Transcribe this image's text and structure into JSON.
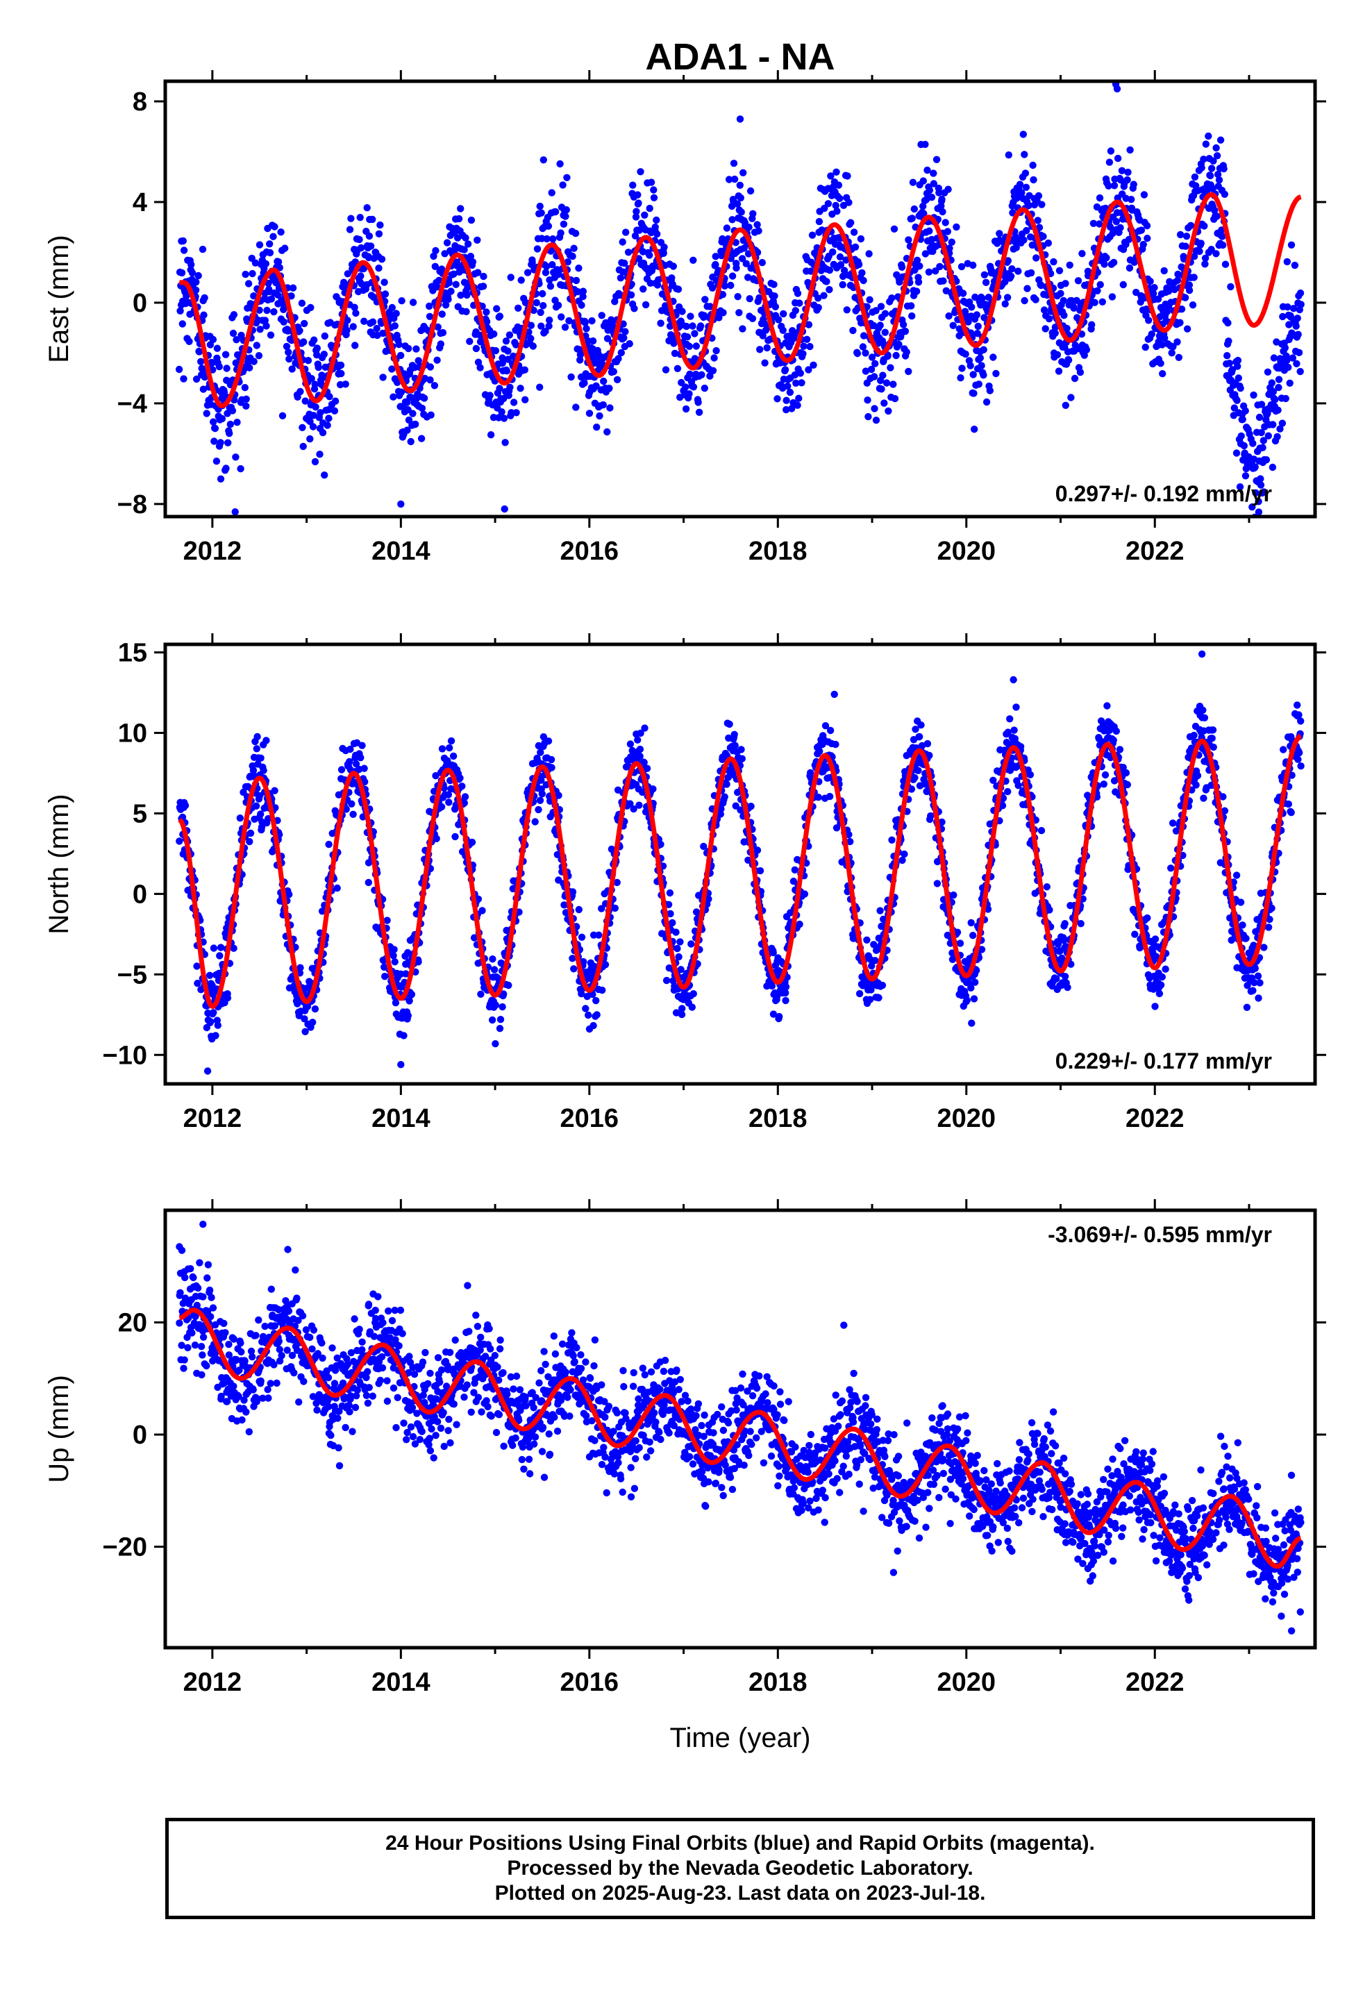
{
  "figure": {
    "title": "ADA1 - NA",
    "xlabel": "Time (year)",
    "footer_lines": [
      "24 Hour Positions Using Final Orbits (blue) and Rapid Orbits (magenta).",
      "Processed by the Nevada Geodetic Laboratory.",
      "Plotted on 2025-Aug-23. Last data on 2023-Jul-18."
    ]
  },
  "chart_data": [
    {
      "type": "scatter",
      "component": "east",
      "ylabel": "East (mm)",
      "xlim": [
        2011.5,
        2023.7
      ],
      "ylim": [
        -8.5,
        8.8
      ],
      "xticks": [
        2012,
        2014,
        2016,
        2018,
        2020,
        2022
      ],
      "yticks": [
        -8,
        -4,
        0,
        4,
        8
      ],
      "ytick_labels": [
        "−8",
        "−4",
        "0",
        "4",
        "8"
      ],
      "rate_text": "0.297+/- 0.192 mm/yr",
      "rate_position": "bottom-right",
      "colors": {
        "points": "#0000ff",
        "fit": "#ff0000"
      },
      "data_range": [
        2011.65,
        2023.55
      ],
      "fit": {
        "x_start": 2011.65,
        "x_end": 2023.55,
        "offset_at_start": 0.5,
        "rate": 0.297,
        "amplitude": 2.6,
        "peak_phase": 0.6
      },
      "fit_anchors": [
        {
          "x": 2011.7,
          "y": 0.8
        },
        {
          "x": 2012.1,
          "y": -4.1
        },
        {
          "x": 2012.65,
          "y": 1.3
        },
        {
          "x": 2013.1,
          "y": -3.9
        },
        {
          "x": 2013.6,
          "y": 1.6
        },
        {
          "x": 2014.1,
          "y": -3.5
        },
        {
          "x": 2014.6,
          "y": 1.9
        },
        {
          "x": 2015.1,
          "y": -3.2
        },
        {
          "x": 2015.6,
          "y": 2.3
        },
        {
          "x": 2016.1,
          "y": -2.9
        },
        {
          "x": 2016.6,
          "y": 2.6
        },
        {
          "x": 2017.1,
          "y": -2.6
        },
        {
          "x": 2017.6,
          "y": 2.9
        },
        {
          "x": 2018.1,
          "y": -2.3
        },
        {
          "x": 2018.6,
          "y": 3.1
        },
        {
          "x": 2019.1,
          "y": -2.0
        },
        {
          "x": 2019.6,
          "y": 3.4
        },
        {
          "x": 2020.1,
          "y": -1.7
        },
        {
          "x": 2020.6,
          "y": 3.7
        },
        {
          "x": 2021.1,
          "y": -1.5
        },
        {
          "x": 2021.6,
          "y": 4.0
        },
        {
          "x": 2022.1,
          "y": -1.1
        },
        {
          "x": 2022.6,
          "y": 4.3
        },
        {
          "x": 2023.05,
          "y": -0.9
        },
        {
          "x": 2023.55,
          "y": 4.2
        }
      ],
      "point_offsets": [
        {
          "x_start": 2022.75,
          "x_end": 2023.6,
          "offset": -5.0
        }
      ],
      "scatter": {
        "noise_sd": 1.25,
        "n_points": 2600
      },
      "outliers": [
        {
          "x": 2012.3,
          "y": -6.6
        },
        {
          "x": 2014.0,
          "y": -8.0
        },
        {
          "x": 2015.1,
          "y": -8.2
        },
        {
          "x": 2017.6,
          "y": 7.3
        },
        {
          "x": 2021.6,
          "y": 8.5
        },
        {
          "x": 2023.1,
          "y": -7.9
        }
      ]
    },
    {
      "type": "scatter",
      "component": "north",
      "ylabel": "North (mm)",
      "xlim": [
        2011.5,
        2023.7
      ],
      "ylim": [
        -11.8,
        15.5
      ],
      "xticks": [
        2012,
        2014,
        2016,
        2018,
        2020,
        2022
      ],
      "yticks": [
        -10,
        -5,
        0,
        5,
        10,
        15
      ],
      "ytick_labels": [
        "−10",
        "−5",
        "0",
        "5",
        "10",
        "15"
      ],
      "rate_text": "0.229+/- 0.177 mm/yr",
      "rate_position": "bottom-right",
      "colors": {
        "points": "#0000ff",
        "fit": "#ff0000"
      },
      "data_range": [
        2011.65,
        2023.55
      ],
      "fit": {
        "x_start": 2011.65,
        "x_end": 2023.55,
        "offset_at_start": 0.2,
        "rate": 0.229,
        "amplitude": 7.0,
        "peak_phase": 0.5
      },
      "fit_anchors": [
        {
          "x": 2011.65,
          "y": 4.6
        },
        {
          "x": 2012.0,
          "y": -7.0
        },
        {
          "x": 2012.5,
          "y": 7.2
        },
        {
          "x": 2013.0,
          "y": -6.7
        },
        {
          "x": 2013.5,
          "y": 7.5
        },
        {
          "x": 2014.0,
          "y": -6.5
        },
        {
          "x": 2014.5,
          "y": 7.7
        },
        {
          "x": 2015.0,
          "y": -6.3
        },
        {
          "x": 2015.5,
          "y": 7.9
        },
        {
          "x": 2016.0,
          "y": -6.0
        },
        {
          "x": 2016.5,
          "y": 8.1
        },
        {
          "x": 2017.0,
          "y": -5.8
        },
        {
          "x": 2017.5,
          "y": 8.4
        },
        {
          "x": 2018.0,
          "y": -5.5
        },
        {
          "x": 2018.5,
          "y": 8.6
        },
        {
          "x": 2019.0,
          "y": -5.3
        },
        {
          "x": 2019.5,
          "y": 8.9
        },
        {
          "x": 2020.0,
          "y": -5.1
        },
        {
          "x": 2020.5,
          "y": 9.1
        },
        {
          "x": 2021.0,
          "y": -4.8
        },
        {
          "x": 2021.5,
          "y": 9.3
        },
        {
          "x": 2022.0,
          "y": -4.6
        },
        {
          "x": 2022.5,
          "y": 9.5
        },
        {
          "x": 2023.0,
          "y": -4.4
        },
        {
          "x": 2023.55,
          "y": 9.8
        }
      ],
      "point_offsets": [],
      "scatter": {
        "noise_sd": 1.2,
        "n_points": 2600
      },
      "outliers": [
        {
          "x": 2011.95,
          "y": -11.0
        },
        {
          "x": 2014.0,
          "y": -10.6
        },
        {
          "x": 2018.6,
          "y": 12.4
        },
        {
          "x": 2020.5,
          "y": 13.3
        },
        {
          "x": 2022.5,
          "y": 14.9
        }
      ]
    },
    {
      "type": "scatter",
      "component": "up",
      "ylabel": "Up (mm)",
      "xlim": [
        2011.5,
        2023.7
      ],
      "ylim": [
        -38,
        40
      ],
      "xticks": [
        2012,
        2014,
        2016,
        2018,
        2020,
        2022
      ],
      "yticks": [
        -20,
        0,
        20
      ],
      "ytick_labels": [
        "−20",
        "0",
        "20"
      ],
      "rate_text": "-3.069+/- 0.595 mm/yr",
      "rate_position": "top-right",
      "colors": {
        "points": "#0000ff",
        "fit": "#ff0000"
      },
      "data_range": [
        2011.65,
        2023.55
      ],
      "fit": {
        "x_start": 2011.65,
        "x_end": 2023.55,
        "offset_at_start": 18.0,
        "rate": -3.069,
        "amplitude": 4.5,
        "peak_phase": 0.8
      },
      "fit_anchors": [
        {
          "x": 2011.65,
          "y": 20.8
        },
        {
          "x": 2011.8,
          "y": 22.2
        },
        {
          "x": 2012.3,
          "y": 10.0
        },
        {
          "x": 2012.8,
          "y": 19.0
        },
        {
          "x": 2013.3,
          "y": 7.0
        },
        {
          "x": 2013.8,
          "y": 16.0
        },
        {
          "x": 2014.3,
          "y": 4.0
        },
        {
          "x": 2014.8,
          "y": 13.0
        },
        {
          "x": 2015.3,
          "y": 1.0
        },
        {
          "x": 2015.8,
          "y": 10.0
        },
        {
          "x": 2016.3,
          "y": -2.0
        },
        {
          "x": 2016.8,
          "y": 7.0
        },
        {
          "x": 2017.3,
          "y": -5.0
        },
        {
          "x": 2017.8,
          "y": 4.0
        },
        {
          "x": 2018.3,
          "y": -8.0
        },
        {
          "x": 2018.8,
          "y": 1.0
        },
        {
          "x": 2019.3,
          "y": -11.0
        },
        {
          "x": 2019.8,
          "y": -2.0
        },
        {
          "x": 2020.3,
          "y": -14.0
        },
        {
          "x": 2020.8,
          "y": -5.0
        },
        {
          "x": 2021.3,
          "y": -17.5
        },
        {
          "x": 2021.8,
          "y": -8.5
        },
        {
          "x": 2022.3,
          "y": -20.5
        },
        {
          "x": 2022.8,
          "y": -11.0
        },
        {
          "x": 2023.3,
          "y": -23.5
        },
        {
          "x": 2023.55,
          "y": -18.5
        }
      ],
      "point_offsets": [],
      "scatter": {
        "noise_sd": 4.2,
        "n_points": 2600
      },
      "outliers": [
        {
          "x": 2011.9,
          "y": 37.5
        },
        {
          "x": 2011.65,
          "y": 33.5
        },
        {
          "x": 2012.8,
          "y": 33.0
        },
        {
          "x": 2018.7,
          "y": 19.5
        },
        {
          "x": 2023.45,
          "y": -35.0
        }
      ]
    }
  ]
}
